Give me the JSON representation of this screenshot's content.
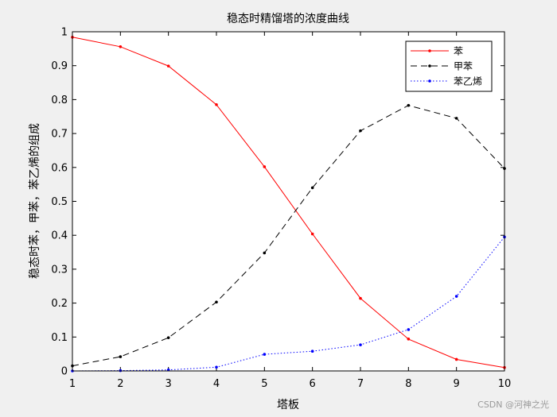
{
  "chart_data": {
    "type": "line",
    "title": "稳态时精馏塔的浓度曲线",
    "xlabel": "塔板",
    "ylabel": "稳态时苯，甲苯，苯乙烯的组成",
    "xlim": [
      1,
      10
    ],
    "ylim": [
      0,
      1
    ],
    "x": [
      1,
      2,
      3,
      4,
      5,
      6,
      7,
      8,
      9,
      10
    ],
    "xticks": [
      1,
      2,
      3,
      4,
      5,
      6,
      7,
      8,
      9,
      10
    ],
    "yticks": [
      0,
      0.1,
      0.2,
      0.3,
      0.4,
      0.5,
      0.6,
      0.7,
      0.8,
      0.9,
      1
    ],
    "grid": false,
    "legend_position": "top-right",
    "series": [
      {
        "name": "苯",
        "color": "#ff0000",
        "linestyle": "solid",
        "values": [
          0.984,
          0.956,
          0.899,
          0.785,
          0.602,
          0.404,
          0.214,
          0.094,
          0.034,
          0.01
        ]
      },
      {
        "name": "甲苯",
        "color": "#000000",
        "linestyle": "dashed",
        "values": [
          0.015,
          0.042,
          0.098,
          0.203,
          0.348,
          0.54,
          0.708,
          0.783,
          0.745,
          0.597
        ]
      },
      {
        "name": "苯乙烯",
        "color": "#0000ff",
        "linestyle": "dotted",
        "values": [
          0.0,
          0.001,
          0.003,
          0.011,
          0.049,
          0.058,
          0.077,
          0.122,
          0.22,
          0.395
        ]
      }
    ]
  },
  "watermark": "CSDN @河神之光"
}
